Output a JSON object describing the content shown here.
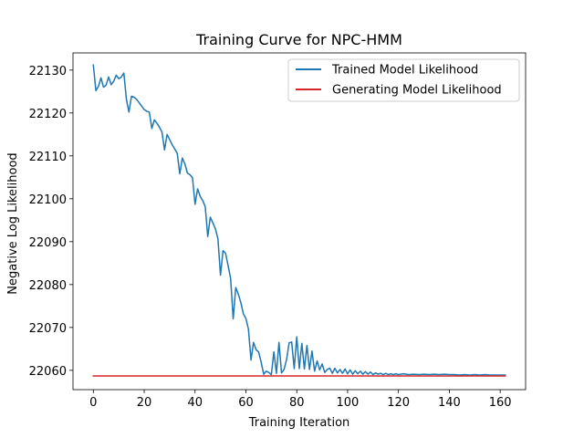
{
  "chart_data": {
    "type": "line",
    "title": "Training Curve for NPC-HMM",
    "xlabel": "Training Iteration",
    "ylabel": "Negative Log Likelihood",
    "xlim": [
      -8,
      170
    ],
    "ylim": [
      22055.5,
      22134
    ],
    "xticks": [
      0,
      20,
      40,
      60,
      80,
      100,
      120,
      140,
      160
    ],
    "yticks": [
      22060,
      22070,
      22080,
      22090,
      22100,
      22110,
      22120,
      22130
    ],
    "legend_position": "top-right",
    "grid": false,
    "series": [
      {
        "name": "Trained Model Likelihood",
        "color": "#1f77b4",
        "points": [
          [
            0,
            22131.2
          ],
          [
            1,
            22125.2
          ],
          [
            2,
            22126.2
          ],
          [
            3,
            22128.2
          ],
          [
            4,
            22126.0
          ],
          [
            5,
            22126.5
          ],
          [
            6,
            22128.4
          ],
          [
            7,
            22126.6
          ],
          [
            8,
            22127.4
          ],
          [
            9,
            22128.8
          ],
          [
            10,
            22128.0
          ],
          [
            11,
            22128.4
          ],
          [
            12,
            22129.3
          ],
          [
            13,
            22123.2
          ],
          [
            14,
            22120.2
          ],
          [
            15,
            22123.9
          ],
          [
            16,
            22123.7
          ],
          [
            17,
            22123.2
          ],
          [
            18,
            22122.4
          ],
          [
            19,
            22121.6
          ],
          [
            20,
            22120.8
          ],
          [
            21,
            22120.4
          ],
          [
            22,
            22120.2
          ],
          [
            23,
            22116.4
          ],
          [
            24,
            22118.4
          ],
          [
            25,
            22117.6
          ],
          [
            26,
            22116.7
          ],
          [
            27,
            22115.5
          ],
          [
            28,
            22111.4
          ],
          [
            29,
            22115.0
          ],
          [
            30,
            22113.8
          ],
          [
            31,
            22112.6
          ],
          [
            32,
            22111.6
          ],
          [
            33,
            22110.6
          ],
          [
            34,
            22105.8
          ],
          [
            35,
            22109.5
          ],
          [
            36,
            22108.1
          ],
          [
            37,
            22106.0
          ],
          [
            38,
            22105.6
          ],
          [
            39,
            22104.9
          ],
          [
            40,
            22098.7
          ],
          [
            41,
            22102.3
          ],
          [
            42,
            22100.6
          ],
          [
            43,
            22099.6
          ],
          [
            44,
            22098.2
          ],
          [
            45,
            22091.2
          ],
          [
            46,
            22095.7
          ],
          [
            47,
            22094.4
          ],
          [
            48,
            22093.0
          ],
          [
            49,
            22090.7
          ],
          [
            50,
            22082.2
          ],
          [
            51,
            22087.9
          ],
          [
            52,
            22087.3
          ],
          [
            53,
            22084.4
          ],
          [
            54,
            22081.4
          ],
          [
            55,
            22072.0
          ],
          [
            56,
            22079.3
          ],
          [
            57,
            22077.8
          ],
          [
            58,
            22075.8
          ],
          [
            59,
            22073.2
          ],
          [
            60,
            22072.1
          ],
          [
            61,
            22069.6
          ],
          [
            62,
            22062.4
          ],
          [
            63,
            22066.5
          ],
          [
            64,
            22064.8
          ],
          [
            65,
            22064.3
          ],
          [
            66,
            22061.9
          ],
          [
            67,
            22059.1
          ],
          [
            68,
            22059.8
          ],
          [
            69,
            22059.5
          ],
          [
            70,
            22059.0
          ],
          [
            71,
            22064.3
          ],
          [
            72,
            22059.3
          ],
          [
            73,
            22066.5
          ],
          [
            74,
            22059.4
          ],
          [
            75,
            22060.2
          ],
          [
            76,
            22062.5
          ],
          [
            77,
            22066.4
          ],
          [
            78,
            22066.6
          ],
          [
            79,
            22060.4
          ],
          [
            80,
            22067.8
          ],
          [
            81,
            22060.4
          ],
          [
            82,
            22066.3
          ],
          [
            83,
            22060.3
          ],
          [
            84,
            22065.8
          ],
          [
            85,
            22060.2
          ],
          [
            86,
            22064.5
          ],
          [
            87,
            22059.8
          ],
          [
            88,
            22062.2
          ],
          [
            89,
            22060.1
          ],
          [
            90,
            22061.5
          ],
          [
            91,
            22059.5
          ],
          [
            92,
            22060.2
          ],
          [
            93,
            22060.5
          ],
          [
            94,
            22059.3
          ],
          [
            95,
            22060.5
          ],
          [
            96,
            22059.4
          ],
          [
            97,
            22060.2
          ],
          [
            98,
            22059.3
          ],
          [
            99,
            22060.3
          ],
          [
            100,
            22059.2
          ],
          [
            101,
            22060.1
          ],
          [
            102,
            22059.1
          ],
          [
            103,
            22059.9
          ],
          [
            104,
            22059.2
          ],
          [
            105,
            22059.8
          ],
          [
            106,
            22059.1
          ],
          [
            107,
            22059.7
          ],
          [
            108,
            22059.1
          ],
          [
            109,
            22059.6
          ],
          [
            110,
            22059.0
          ],
          [
            111,
            22059.4
          ],
          [
            112,
            22059.1
          ],
          [
            113,
            22059.3
          ],
          [
            114,
            22059.0
          ],
          [
            115,
            22059.3
          ],
          [
            116,
            22059.0
          ],
          [
            117,
            22059.2
          ],
          [
            118,
            22059.0
          ],
          [
            119,
            22059.2
          ],
          [
            120,
            22059.0
          ],
          [
            122,
            22059.2
          ],
          [
            124,
            22059.0
          ],
          [
            126,
            22059.1
          ],
          [
            128,
            22059.0
          ],
          [
            130,
            22059.1
          ],
          [
            132,
            22059.0
          ],
          [
            134,
            22059.1
          ],
          [
            136,
            22059.0
          ],
          [
            138,
            22059.1
          ],
          [
            140,
            22059.0
          ],
          [
            142,
            22059.0
          ],
          [
            144,
            22058.9
          ],
          [
            146,
            22059.0
          ],
          [
            148,
            22058.9
          ],
          [
            150,
            22059.0
          ],
          [
            152,
            22058.9
          ],
          [
            154,
            22059.0
          ],
          [
            156,
            22058.9
          ],
          [
            158,
            22058.9
          ],
          [
            160,
            22058.9
          ],
          [
            162,
            22058.9
          ]
        ]
      },
      {
        "name": "Generating Model Likelihood",
        "color": "#d62728",
        "points": [
          [
            0,
            22058.7
          ],
          [
            162,
            22058.7
          ]
        ]
      }
    ]
  }
}
